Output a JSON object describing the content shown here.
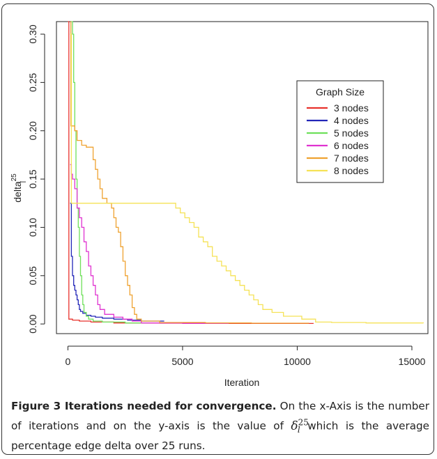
{
  "chart_data": {
    "type": "line",
    "title": "",
    "xlabel": "Iteration",
    "ylabel": "delta",
    "ylabel_sup": "25",
    "ylabel_sub": "l",
    "xlim": [
      -500,
      15700
    ],
    "ylim": [
      -0.01,
      0.313
    ],
    "x_ticks": [
      0,
      5000,
      10000,
      15000
    ],
    "x_tick_labels": [
      "0",
      "5000",
      "10000",
      "15000"
    ],
    "y_ticks": [
      0.0,
      0.05,
      0.1,
      0.15,
      0.2,
      0.25,
      0.3
    ],
    "y_tick_labels": [
      "0.00",
      "0.05",
      "0.10",
      "0.15",
      "0.20",
      "0.25",
      "0.30"
    ],
    "grid": false,
    "legend": {
      "title": "Graph Size",
      "position": "top-right"
    },
    "series": [
      {
        "name": "3 nodes",
        "color": "#e8322c",
        "points": [
          [
            0,
            0.313
          ],
          [
            20,
            0.313
          ],
          [
            40,
            0.005
          ],
          [
            200,
            0.004
          ],
          [
            500,
            0.003
          ],
          [
            1000,
            0.002
          ],
          [
            2000,
            0.001
          ],
          [
            4000,
            0.0008
          ],
          [
            7000,
            0.0005
          ],
          [
            10700,
            0.0003
          ]
        ]
      },
      {
        "name": "4 nodes",
        "color": "#2226b8",
        "points": [
          [
            100,
            0.125
          ],
          [
            150,
            0.07
          ],
          [
            200,
            0.05
          ],
          [
            250,
            0.04
          ],
          [
            300,
            0.035
          ],
          [
            350,
            0.03
          ],
          [
            400,
            0.025
          ],
          [
            450,
            0.02
          ],
          [
            500,
            0.015
          ],
          [
            550,
            0.013
          ],
          [
            650,
            0.011
          ],
          [
            800,
            0.009
          ],
          [
            1000,
            0.008
          ],
          [
            1200,
            0.007
          ],
          [
            1500,
            0.006
          ],
          [
            2000,
            0.005
          ],
          [
            2600,
            0.004
          ],
          [
            3200,
            0.003
          ],
          [
            4200,
            0.003
          ]
        ]
      },
      {
        "name": "5 nodes",
        "color": "#6ee05a",
        "points": [
          [
            150,
            0.313
          ],
          [
            200,
            0.3
          ],
          [
            250,
            0.25
          ],
          [
            300,
            0.2
          ],
          [
            350,
            0.15
          ],
          [
            400,
            0.12
          ],
          [
            450,
            0.1
          ],
          [
            500,
            0.07
          ],
          [
            550,
            0.05
          ],
          [
            600,
            0.03
          ],
          [
            650,
            0.02
          ],
          [
            700,
            0.012
          ],
          [
            800,
            0.008
          ],
          [
            900,
            0.005
          ],
          [
            1100,
            0.003
          ],
          [
            1500,
            0.002
          ],
          [
            2500,
            0.001
          ],
          [
            3500,
            0.0005
          ]
        ]
      },
      {
        "name": "6 nodes",
        "color": "#e032d0",
        "points": [
          [
            100,
            0.165
          ],
          [
            150,
            0.155
          ],
          [
            200,
            0.15
          ],
          [
            300,
            0.14
          ],
          [
            400,
            0.12
          ],
          [
            500,
            0.11
          ],
          [
            600,
            0.1
          ],
          [
            700,
            0.085
          ],
          [
            800,
            0.075
          ],
          [
            900,
            0.06
          ],
          [
            1000,
            0.05
          ],
          [
            1100,
            0.04
          ],
          [
            1200,
            0.03
          ],
          [
            1300,
            0.02
          ],
          [
            1400,
            0.015
          ],
          [
            1600,
            0.01
          ],
          [
            2000,
            0.007
          ],
          [
            2400,
            0.005
          ],
          [
            2800,
            0.003
          ],
          [
            3200,
            0.001
          ],
          [
            5000,
            0.0005
          ],
          [
            7000,
            0.0003
          ]
        ]
      },
      {
        "name": "7 nodes",
        "color": "#efa230",
        "points": [
          [
            120,
            0.313
          ],
          [
            130,
            0.205
          ],
          [
            300,
            0.2
          ],
          [
            400,
            0.19
          ],
          [
            600,
            0.185
          ],
          [
            800,
            0.183
          ],
          [
            1000,
            0.183
          ],
          [
            1100,
            0.17
          ],
          [
            1200,
            0.16
          ],
          [
            1300,
            0.15
          ],
          [
            1400,
            0.14
          ],
          [
            1500,
            0.13
          ],
          [
            1700,
            0.125
          ],
          [
            1900,
            0.12
          ],
          [
            2000,
            0.11
          ],
          [
            2100,
            0.1
          ],
          [
            2200,
            0.095
          ],
          [
            2300,
            0.08
          ],
          [
            2400,
            0.065
          ],
          [
            2500,
            0.05
          ],
          [
            2600,
            0.04
          ],
          [
            2700,
            0.03
          ],
          [
            2800,
            0.017
          ],
          [
            2900,
            0.01
          ],
          [
            3000,
            0.005
          ],
          [
            3200,
            0.003
          ],
          [
            4000,
            0.0015
          ],
          [
            6000,
            0.001
          ],
          [
            8000,
            0.0008
          ],
          [
            10500,
            0.0005
          ]
        ]
      },
      {
        "name": "8 nodes",
        "color": "#f5e256",
        "points": [
          [
            100,
            0.3
          ],
          [
            150,
            0.125
          ],
          [
            4500,
            0.125
          ],
          [
            4700,
            0.12
          ],
          [
            4900,
            0.115
          ],
          [
            5100,
            0.11
          ],
          [
            5300,
            0.105
          ],
          [
            5500,
            0.1
          ],
          [
            5700,
            0.09
          ],
          [
            5900,
            0.085
          ],
          [
            6100,
            0.08
          ],
          [
            6300,
            0.07
          ],
          [
            6500,
            0.065
          ],
          [
            6700,
            0.06
          ],
          [
            6900,
            0.055
          ],
          [
            7100,
            0.05
          ],
          [
            7300,
            0.045
          ],
          [
            7500,
            0.04
          ],
          [
            7700,
            0.035
          ],
          [
            7900,
            0.03
          ],
          [
            8100,
            0.025
          ],
          [
            8300,
            0.02
          ],
          [
            8500,
            0.015
          ],
          [
            8900,
            0.012
          ],
          [
            9400,
            0.008
          ],
          [
            10200,
            0.005
          ],
          [
            10800,
            0.002
          ],
          [
            11500,
            0.0015
          ],
          [
            13000,
            0.001
          ],
          [
            15500,
            0.0008
          ]
        ]
      }
    ]
  },
  "caption": {
    "title": "Figure 3 Iterations needed for convergence.",
    "text_1": " On the x-Axis is the number of iterations and on the y-axis is the value of ",
    "delta_symbol": "δ",
    "delta_sup": "25",
    "delta_sub": "l",
    "text_2": " which is the average percentage edge delta over 25 runs."
  }
}
